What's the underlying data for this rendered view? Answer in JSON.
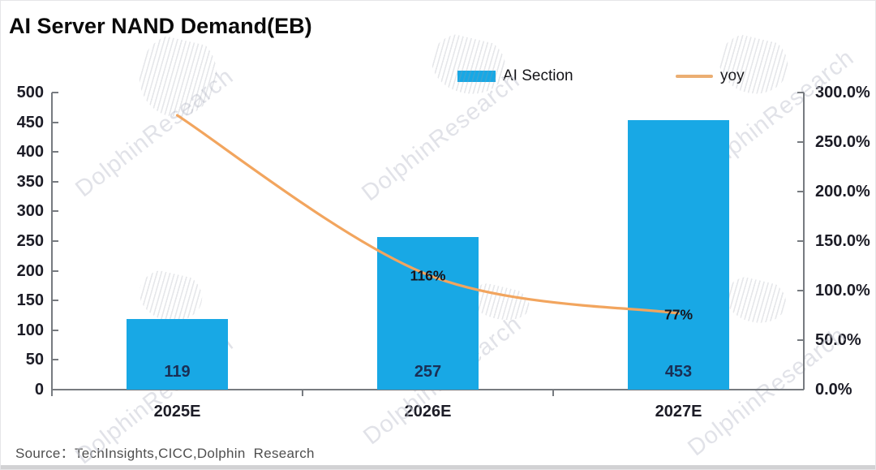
{
  "page": {
    "source_note": "Source：TechInsights,CICC,Dolphin  Research",
    "watermark_text": "DolphinResearch"
  },
  "chart_data": {
    "type": "bar",
    "subtype": "bar-line-combo",
    "title": "AI Server NAND Demand(EB)",
    "categories": [
      "2025E",
      "2026E",
      "2027E"
    ],
    "series": [
      {
        "name": "AI Section",
        "type": "bar",
        "axis": "left",
        "color": "#18A8E5",
        "values": [
          119,
          257,
          453
        ],
        "value_labels": [
          "119",
          "257",
          "453"
        ]
      },
      {
        "name": "yoy",
        "type": "line",
        "axis": "right",
        "color": "#F2A55E",
        "values_pct": [
          277,
          116,
          77
        ],
        "point_labels": [
          "",
          "116%",
          "77%"
        ]
      }
    ],
    "left_axis": {
      "min": 0,
      "max": 500,
      "step": 50,
      "tick_labels": [
        "500",
        "450",
        "400",
        "350",
        "300",
        "250",
        "200",
        "150",
        "100",
        "50",
        "0"
      ]
    },
    "right_axis": {
      "min": 0,
      "max": 300,
      "step": 50,
      "tick_labels": [
        "300.0%",
        "250.0%",
        "200.0%",
        "150.0%",
        "100.0%",
        "50.0%",
        "0.0%"
      ]
    },
    "legend": {
      "position": "top",
      "items": [
        {
          "label": "AI Section",
          "swatch": "bar"
        },
        {
          "label": "yoy",
          "swatch": "line"
        }
      ]
    },
    "grid": false
  }
}
